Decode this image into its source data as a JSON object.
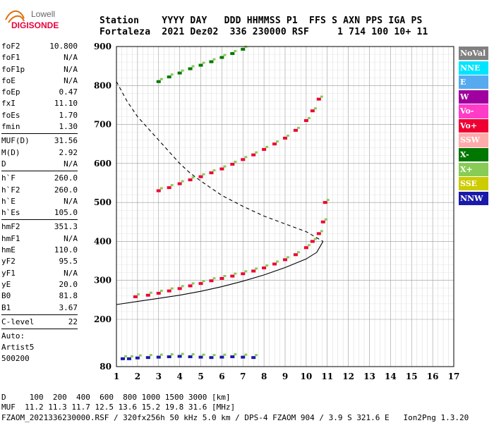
{
  "logo": {
    "line1": "Lowell",
    "line2": "DIGISONDE"
  },
  "header": {
    "labels": "Station    YYYY DAY   DDD HHMMSS P1  FFS S AXN PPS IGA PS",
    "values": "Fortaleza  2021 Dez02  336 230000 RSF     1 714 100 10+ 11"
  },
  "params": {
    "group1": [
      {
        "k": "foF2",
        "v": "10.800"
      },
      {
        "k": "foF1",
        "v": "N/A"
      },
      {
        "k": "foF1p",
        "v": "N/A"
      },
      {
        "k": "foE",
        "v": "N/A"
      },
      {
        "k": "foEp",
        "v": "0.47"
      },
      {
        "k": "fxI",
        "v": "11.10"
      },
      {
        "k": "foEs",
        "v": "1.70"
      },
      {
        "k": "fmin",
        "v": "1.30"
      }
    ],
    "group2": [
      {
        "k": "MUF(D)",
        "v": "31.56"
      },
      {
        "k": "M(D)",
        "v": "2.92"
      },
      {
        "k": "D",
        "v": "N/A"
      }
    ],
    "group3": [
      {
        "k": "h`F",
        "v": "260.0"
      },
      {
        "k": "h`F2",
        "v": "260.0"
      },
      {
        "k": "h`E",
        "v": "N/A"
      },
      {
        "k": "h`Es",
        "v": "105.0"
      }
    ],
    "group4": [
      {
        "k": "hmF2",
        "v": "351.3"
      },
      {
        "k": "hmF1",
        "v": "N/A"
      },
      {
        "k": "hmE",
        "v": "110.0"
      },
      {
        "k": "yF2",
        "v": "95.5"
      },
      {
        "k": "yF1",
        "v": "N/A"
      },
      {
        "k": "yE",
        "v": "20.0"
      },
      {
        "k": "B0",
        "v": "81.8"
      },
      {
        "k": "B1",
        "v": "3.67"
      }
    ],
    "group5": [
      {
        "k": "C-level",
        "v": "22"
      }
    ],
    "auto": [
      "Auto:",
      "Artist5",
      "500200"
    ]
  },
  "legend": [
    {
      "label": "NoVal",
      "color": "#808080"
    },
    {
      "label": "NNE",
      "color": "#00e5ff"
    },
    {
      "label": "E",
      "color": "#55aaf0"
    },
    {
      "label": "W",
      "color": "#a000a0"
    },
    {
      "label": "Vo-",
      "color": "#ff3cc8"
    },
    {
      "label": "Vo+",
      "color": "#ee0033"
    },
    {
      "label": "SSW",
      "color": "#ffaaaa"
    },
    {
      "label": "X-",
      "color": "#007700"
    },
    {
      "label": "X+",
      "color": "#88cc55"
    },
    {
      "label": "SSE",
      "color": "#cccc00"
    },
    {
      "label": "NNW",
      "color": "#1a1aaa"
    }
  ],
  "footer": {
    "line1": "D     100  200  400  600  800 1000 1500 3000 [km]",
    "line2": "MUF  11.2 11.3 11.7 12.5 13.6 15.2 19.8 31.6 [MHz]",
    "line3": "FZAOM_2021336230000.RSF / 320fx256h 50 kHz 5.0 km / DPS-4 FZAOM 904 / 3.9 S 321.6 E   Ion2Png 1.3.20"
  },
  "chart_data": {
    "type": "scatter",
    "title": "",
    "xlabel": "",
    "ylabel": "",
    "xlim": [
      1,
      17
    ],
    "ylim": [
      80,
      900
    ],
    "x_ticks": [
      1,
      2,
      3,
      4,
      5,
      6,
      7,
      8,
      9,
      10,
      11,
      12,
      13,
      14,
      15,
      16,
      17
    ],
    "y_ticks": [
      80,
      200,
      300,
      400,
      500,
      600,
      700,
      800,
      900
    ],
    "grid": true,
    "series": [
      {
        "name": "F2 trace (Vo+)",
        "color": "#ee0033",
        "x": [
          1.9,
          2.5,
          3,
          3.5,
          4,
          4.5,
          5,
          5.5,
          6,
          6.5,
          7,
          7.5,
          8,
          8.5,
          9,
          9.5,
          10,
          10.3,
          10.6,
          10.8,
          10.9
        ],
        "y": [
          258,
          262,
          267,
          273,
          279,
          286,
          292,
          299,
          305,
          311,
          317,
          324,
          332,
          342,
          353,
          366,
          384,
          400,
          420,
          450,
          500
        ]
      },
      {
        "name": "F2 second hop (Vo+)",
        "color": "#ee0033",
        "x": [
          3,
          3.5,
          4,
          4.5,
          5,
          5.5,
          6,
          6.5,
          7,
          7.5,
          8,
          8.5,
          9,
          9.5,
          10,
          10.3,
          10.6
        ],
        "y": [
          530,
          538,
          548,
          558,
          566,
          576,
          586,
          598,
          610,
          622,
          636,
          650,
          665,
          685,
          710,
          735,
          765
        ]
      },
      {
        "name": "F2 third hop (X-)",
        "color": "#007700",
        "x": [
          3,
          3.5,
          4,
          4.5,
          5,
          5.5,
          6,
          6.5,
          7
        ],
        "y": [
          810,
          822,
          832,
          843,
          852,
          861,
          872,
          882,
          893
        ]
      },
      {
        "name": "Es trace (NNW)",
        "color": "#1a1aaa",
        "x": [
          1.3,
          1.6,
          2,
          2.5,
          3,
          3.5,
          4,
          4.5,
          5,
          5.5,
          6,
          6.5,
          7,
          7.5
        ],
        "y": [
          100,
          100,
          102,
          103,
          104,
          105,
          106,
          105,
          104,
          103,
          104,
          105,
          104,
          103
        ]
      }
    ],
    "lines": [
      {
        "name": "profile",
        "x": [
          1,
          2,
          3,
          4,
          5,
          6,
          7,
          8,
          9,
          10,
          10.5,
          10.8
        ],
        "y": [
          238,
          246,
          254,
          262,
          272,
          284,
          298,
          314,
          333,
          355,
          372,
          400
        ]
      },
      {
        "name": "profile-dashed",
        "x": [
          1,
          1.5,
          2,
          2.5,
          3,
          3.5,
          4,
          4.5,
          5,
          6,
          7,
          8,
          9,
          10,
          10.8
        ],
        "y": [
          810,
          760,
          720,
          690,
          660,
          630,
          600,
          575,
          555,
          518,
          490,
          465,
          445,
          425,
          400
        ]
      }
    ]
  }
}
